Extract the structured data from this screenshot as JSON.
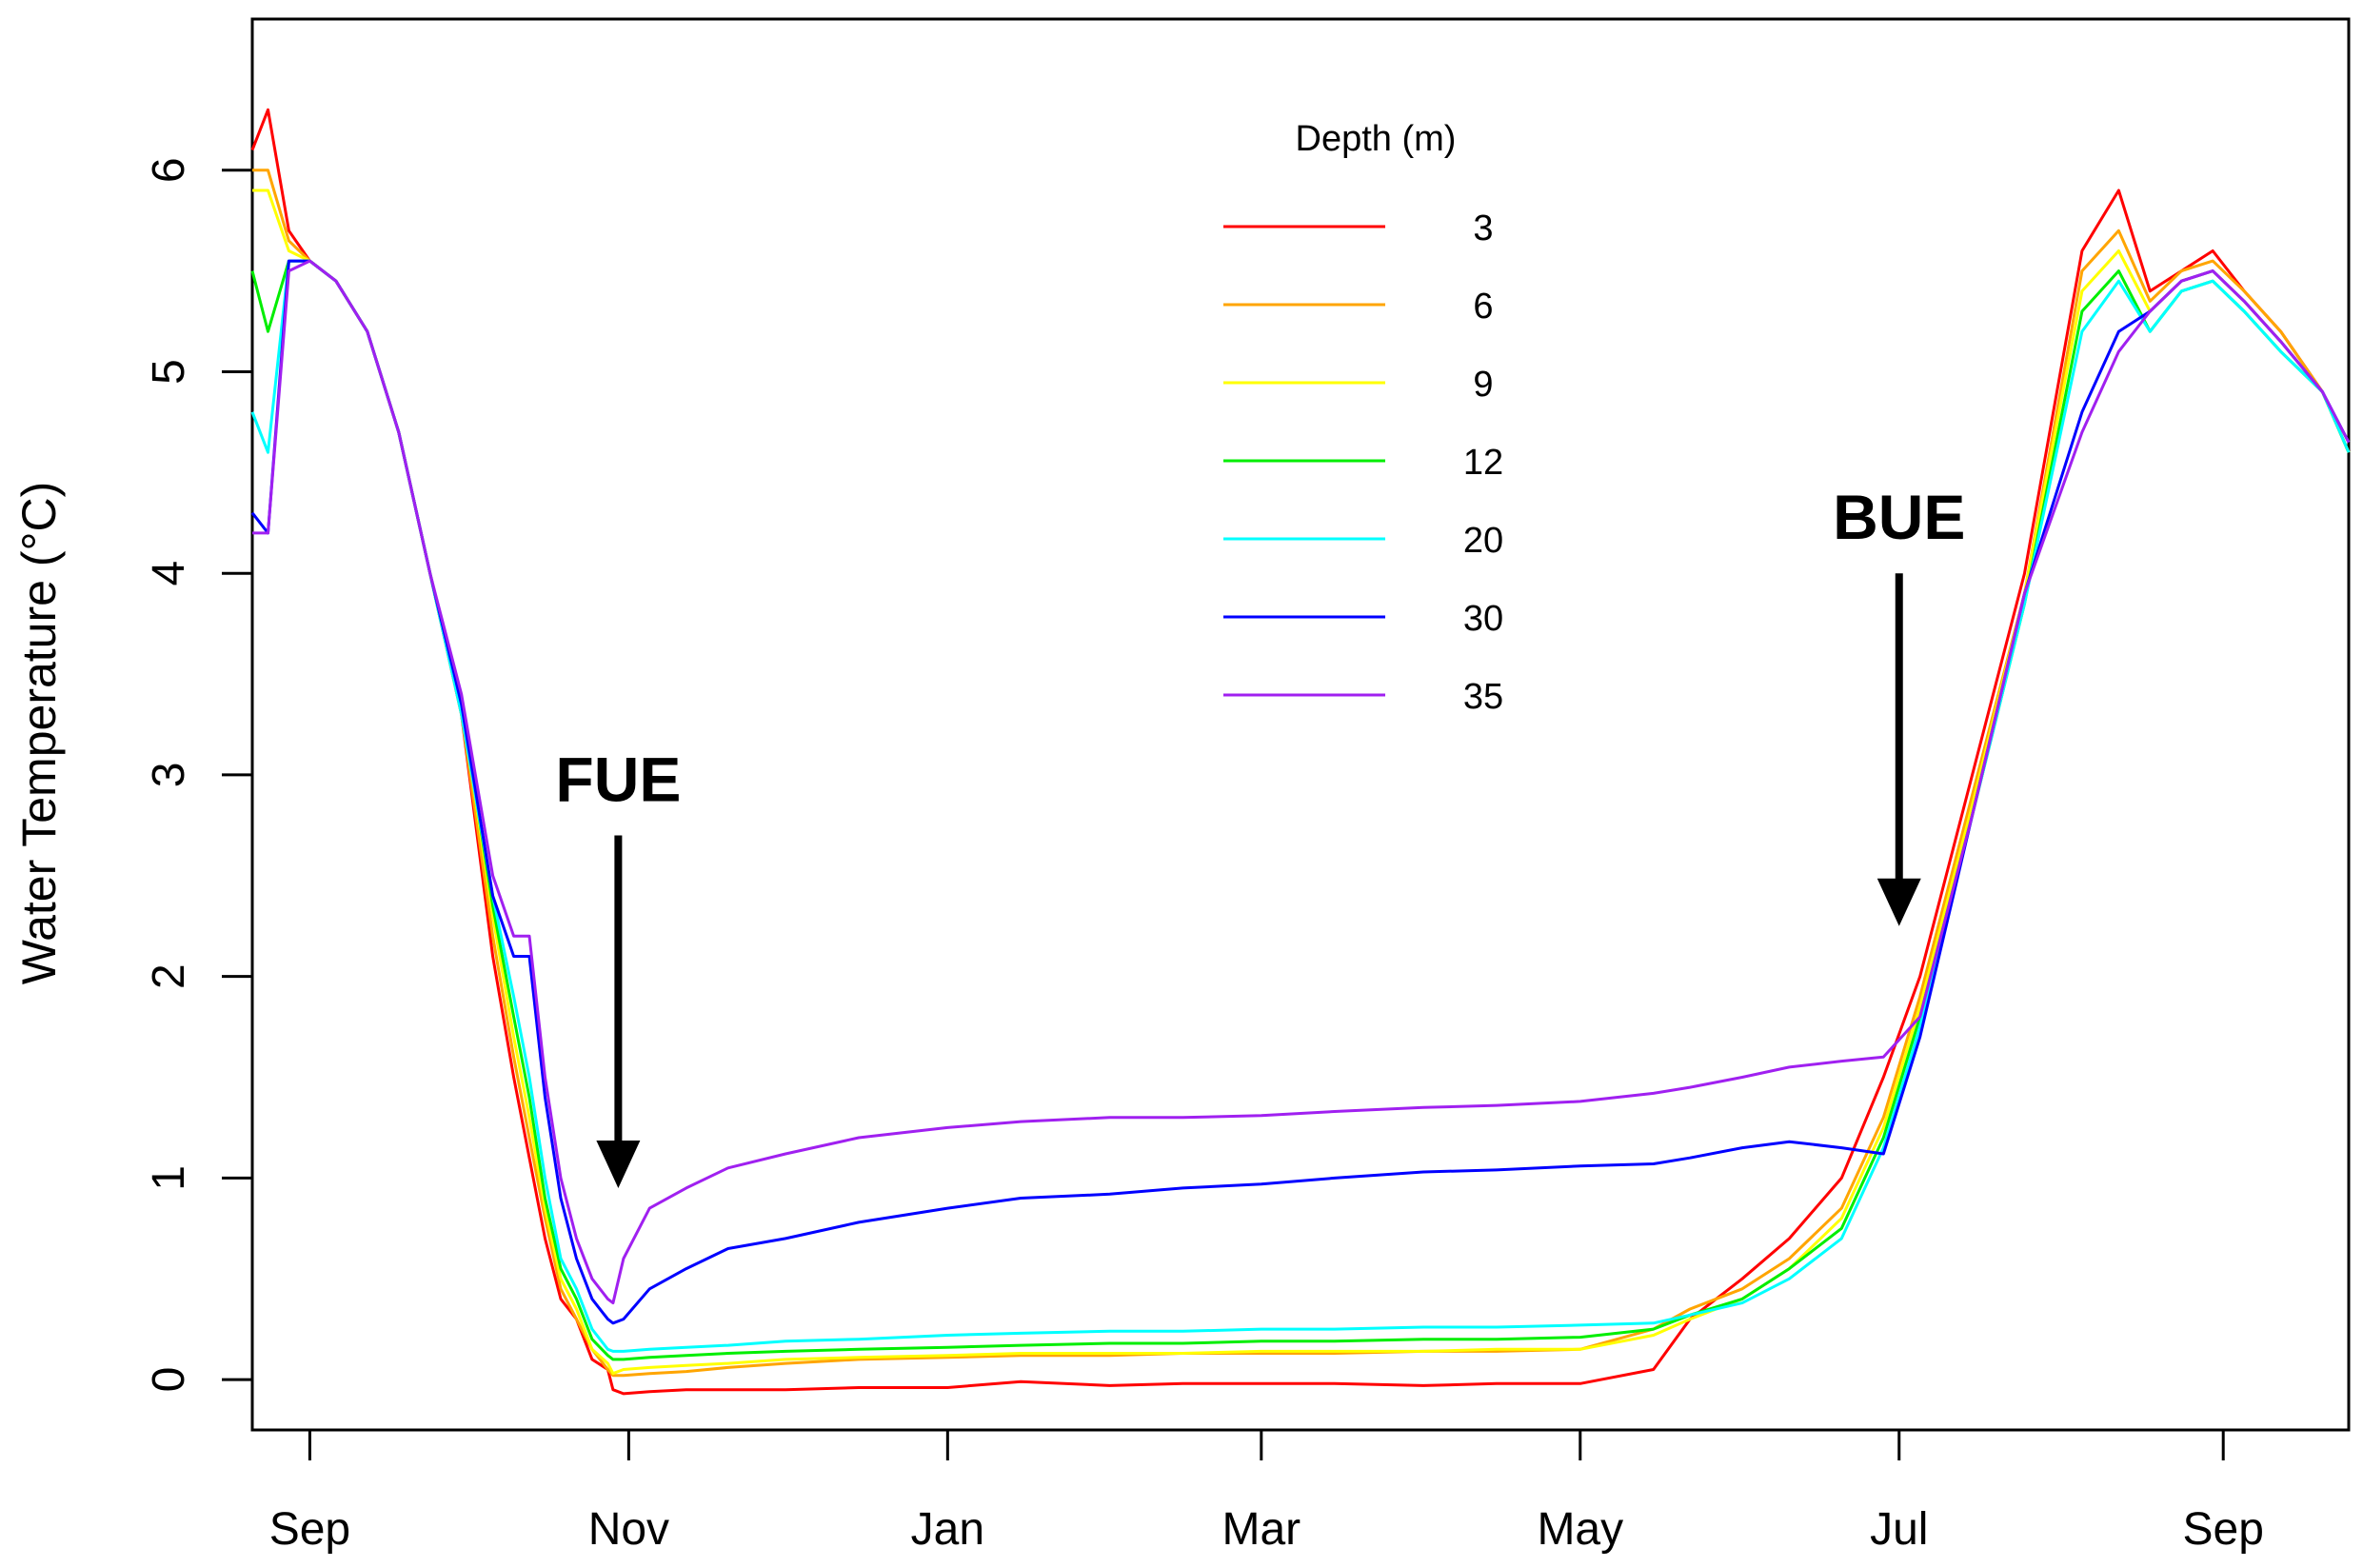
{
  "chart_data": {
    "type": "line",
    "title": "",
    "xlabel": "",
    "ylabel": "Water Temperature (°C)",
    "x_unit": "day",
    "xlim": [
      "2019-08-21",
      "2020-09-25"
    ],
    "ylim": [
      -0.25,
      6.75
    ],
    "x_ticks": [
      {
        "date": "2019-09-01",
        "label": "Sep"
      },
      {
        "date": "2019-11-01",
        "label": "Nov"
      },
      {
        "date": "2020-01-01",
        "label": "Jan"
      },
      {
        "date": "2020-03-01",
        "label": "Mar"
      },
      {
        "date": "2020-05-01",
        "label": "May"
      },
      {
        "date": "2020-07-01",
        "label": "Jul"
      },
      {
        "date": "2020-09-01",
        "label": "Sep"
      }
    ],
    "y_ticks": [
      0,
      1,
      2,
      3,
      4,
      5,
      6
    ],
    "grid": false,
    "legend": {
      "title": "Depth (m)",
      "position": "top-center"
    },
    "x": [
      "2019-08-21",
      "2019-08-24",
      "2019-08-28",
      "2019-09-01",
      "2019-09-06",
      "2019-09-12",
      "2019-09-18",
      "2019-09-24",
      "2019-09-30",
      "2019-10-06",
      "2019-10-10",
      "2019-10-13",
      "2019-10-16",
      "2019-10-19",
      "2019-10-22",
      "2019-10-25",
      "2019-10-28",
      "2019-10-29",
      "2019-10-31",
      "2019-11-05",
      "2019-11-12",
      "2019-11-20",
      "2019-12-01",
      "2019-12-15",
      "2020-01-01",
      "2020-01-15",
      "2020-02-01",
      "2020-02-15",
      "2020-03-01",
      "2020-03-15",
      "2020-04-01",
      "2020-04-15",
      "2020-05-01",
      "2020-05-15",
      "2020-05-22",
      "2020-06-01",
      "2020-06-10",
      "2020-06-20",
      "2020-06-28",
      "2020-07-05",
      "2020-07-15",
      "2020-07-25",
      "2020-08-05",
      "2020-08-12",
      "2020-08-18",
      "2020-08-24",
      "2020-08-30",
      "2020-09-05",
      "2020-09-12",
      "2020-09-20",
      "2020-09-25"
    ],
    "series": [
      {
        "name": "3",
        "color": "#ff0000",
        "values": [
          6.1,
          6.3,
          5.7,
          5.55,
          5.45,
          5.2,
          4.7,
          4.0,
          3.3,
          2.1,
          1.5,
          1.1,
          0.7,
          0.4,
          0.3,
          0.1,
          0.05,
          -0.05,
          -0.07,
          -0.06,
          -0.05,
          -0.05,
          -0.05,
          -0.04,
          -0.04,
          -0.01,
          -0.03,
          -0.02,
          -0.02,
          -0.02,
          -0.03,
          -0.02,
          -0.02,
          0.05,
          0.3,
          0.5,
          0.7,
          1.0,
          1.5,
          2.0,
          3.0,
          4.0,
          5.6,
          5.9,
          5.4,
          5.5,
          5.6,
          5.4,
          5.2,
          4.9,
          4.6
        ]
      },
      {
        "name": "6",
        "color": "#ffa500",
        "values": [
          6.0,
          6.0,
          5.65,
          5.55,
          5.45,
          5.2,
          4.7,
          4.0,
          3.3,
          2.2,
          1.6,
          1.2,
          0.8,
          0.45,
          0.3,
          0.15,
          0.05,
          0.02,
          0.02,
          0.03,
          0.04,
          0.06,
          0.08,
          0.1,
          0.11,
          0.12,
          0.12,
          0.13,
          0.13,
          0.13,
          0.14,
          0.14,
          0.15,
          0.25,
          0.35,
          0.45,
          0.6,
          0.85,
          1.3,
          1.9,
          2.9,
          3.9,
          5.5,
          5.7,
          5.35,
          5.5,
          5.55,
          5.4,
          5.2,
          4.9,
          4.6
        ]
      },
      {
        "name": "9",
        "color": "#ffff00",
        "values": [
          5.9,
          5.9,
          5.6,
          5.55,
          5.45,
          5.2,
          4.7,
          4.0,
          3.35,
          2.3,
          1.7,
          1.3,
          0.85,
          0.5,
          0.35,
          0.15,
          0.08,
          0.03,
          0.05,
          0.06,
          0.07,
          0.08,
          0.1,
          0.11,
          0.12,
          0.13,
          0.13,
          0.13,
          0.14,
          0.14,
          0.14,
          0.15,
          0.15,
          0.22,
          0.3,
          0.4,
          0.55,
          0.8,
          1.25,
          1.85,
          2.85,
          3.9,
          5.4,
          5.6,
          5.3,
          5.45,
          5.5,
          5.35,
          5.15,
          4.9,
          4.6
        ]
      },
      {
        "name": "12",
        "color": "#00ee00",
        "values": [
          5.5,
          5.2,
          5.55,
          5.55,
          5.45,
          5.2,
          4.7,
          4.0,
          3.35,
          2.35,
          1.8,
          1.4,
          0.9,
          0.55,
          0.4,
          0.2,
          0.12,
          0.1,
          0.1,
          0.11,
          0.12,
          0.13,
          0.14,
          0.15,
          0.16,
          0.17,
          0.18,
          0.18,
          0.19,
          0.19,
          0.2,
          0.2,
          0.21,
          0.25,
          0.32,
          0.4,
          0.55,
          0.75,
          1.2,
          1.8,
          2.8,
          3.85,
          5.3,
          5.5,
          5.2,
          5.4,
          5.45,
          5.3,
          5.1,
          4.9,
          4.6
        ]
      },
      {
        "name": "20",
        "color": "#00ffff",
        "values": [
          4.8,
          4.6,
          5.55,
          5.55,
          5.45,
          5.2,
          4.7,
          4.0,
          3.3,
          2.4,
          1.9,
          1.5,
          1.0,
          0.6,
          0.45,
          0.25,
          0.15,
          0.14,
          0.14,
          0.15,
          0.16,
          0.17,
          0.19,
          0.2,
          0.22,
          0.23,
          0.24,
          0.24,
          0.25,
          0.25,
          0.26,
          0.26,
          0.27,
          0.28,
          0.32,
          0.38,
          0.5,
          0.7,
          1.15,
          1.75,
          2.8,
          3.85,
          5.2,
          5.45,
          5.2,
          5.4,
          5.45,
          5.3,
          5.1,
          4.9,
          4.6
        ]
      },
      {
        "name": "30",
        "color": "#0000ff",
        "values": [
          4.3,
          4.2,
          5.55,
          5.55,
          5.45,
          5.2,
          4.7,
          4.0,
          3.35,
          2.4,
          2.1,
          2.1,
          1.4,
          0.9,
          0.6,
          0.4,
          0.3,
          0.28,
          0.3,
          0.45,
          0.55,
          0.65,
          0.7,
          0.78,
          0.85,
          0.9,
          0.92,
          0.95,
          0.97,
          1.0,
          1.03,
          1.04,
          1.06,
          1.07,
          1.1,
          1.15,
          1.18,
          1.15,
          1.12,
          1.7,
          2.8,
          3.9,
          4.8,
          5.2,
          5.3,
          5.45,
          5.5,
          5.35,
          5.15,
          4.9,
          4.65
        ]
      },
      {
        "name": "35",
        "color": "#a020f0",
        "values": [
          4.2,
          4.2,
          5.5,
          5.55,
          5.45,
          5.2,
          4.7,
          4.0,
          3.4,
          2.5,
          2.2,
          2.2,
          1.5,
          1.0,
          0.7,
          0.5,
          0.4,
          0.38,
          0.6,
          0.85,
          0.95,
          1.05,
          1.12,
          1.2,
          1.25,
          1.28,
          1.3,
          1.3,
          1.31,
          1.33,
          1.35,
          1.36,
          1.38,
          1.42,
          1.45,
          1.5,
          1.55,
          1.58,
          1.6,
          1.8,
          2.8,
          3.9,
          4.7,
          5.1,
          5.3,
          5.45,
          5.5,
          5.35,
          5.15,
          4.9,
          4.65
        ]
      }
    ],
    "annotations": [
      {
        "text": "FUE",
        "date": "2019-10-30",
        "arrow_from": 2.7,
        "arrow_to": 0.95
      },
      {
        "text": "BUE",
        "date": "2020-07-01",
        "arrow_from": 4.0,
        "arrow_to": 2.25
      }
    ]
  }
}
